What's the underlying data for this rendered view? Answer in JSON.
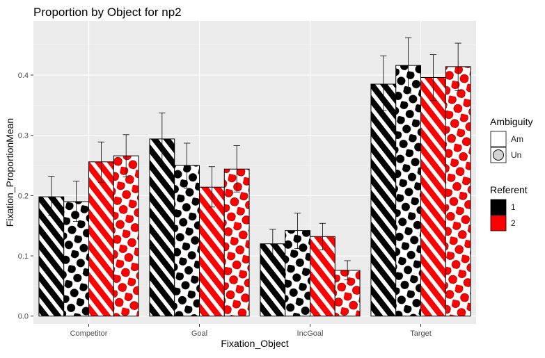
{
  "chart_data": {
    "type": "bar",
    "title": "Proportion by Object for np2",
    "xlabel": "Fixation_Object",
    "ylabel": "Fixation_ProportionMean",
    "ylim": [
      -0.013,
      0.49
    ],
    "yticks": [
      0.0,
      0.1,
      0.2,
      0.3,
      0.4
    ],
    "ytick_labels": [
      "0.0",
      "0.1",
      "0.2",
      "0.3",
      "0.4"
    ],
    "grid": true,
    "categories": [
      "Competitor",
      "Goal",
      "IncGoal",
      "Target"
    ],
    "series": [
      {
        "referent": "1",
        "ambiguity": "Am",
        "fill": "#000000",
        "pattern": "stripe",
        "values": [
          0.198,
          0.294,
          0.12,
          0.385
        ],
        "errors": [
          [
            0.167,
            0.232
          ],
          [
            0.251,
            0.337
          ],
          [
            0.096,
            0.144
          ],
          [
            0.341,
            0.432
          ]
        ]
      },
      {
        "referent": "1",
        "ambiguity": "Un",
        "fill": "#000000",
        "pattern": "circle",
        "values": [
          0.19,
          0.25,
          0.142,
          0.416
        ],
        "errors": [
          [
            0.157,
            0.224
          ],
          [
            0.212,
            0.287
          ],
          [
            0.112,
            0.171
          ],
          [
            0.37,
            0.462
          ]
        ]
      },
      {
        "referent": "2",
        "ambiguity": "Am",
        "fill": "#ff0000",
        "pattern": "stripe",
        "values": [
          0.256,
          0.214,
          0.132,
          0.396
        ],
        "errors": [
          [
            0.222,
            0.289
          ],
          [
            0.181,
            0.248
          ],
          [
            0.11,
            0.154
          ],
          [
            0.358,
            0.434
          ]
        ]
      },
      {
        "referent": "2",
        "ambiguity": "Un",
        "fill": "#ff0000",
        "pattern": "circle",
        "values": [
          0.266,
          0.244,
          0.076,
          0.414
        ],
        "errors": [
          [
            0.231,
            0.301
          ],
          [
            0.206,
            0.283
          ],
          [
            0.06,
            0.092
          ],
          [
            0.374,
            0.453
          ]
        ]
      }
    ],
    "legend": {
      "placement": "right",
      "ambiguity": {
        "title": "Ambiguity",
        "items": [
          "Am",
          "Un"
        ]
      },
      "referent": {
        "title": "Referent",
        "items": [
          "1",
          "2"
        ],
        "colors": [
          "#000000",
          "#ff0000"
        ]
      }
    }
  }
}
